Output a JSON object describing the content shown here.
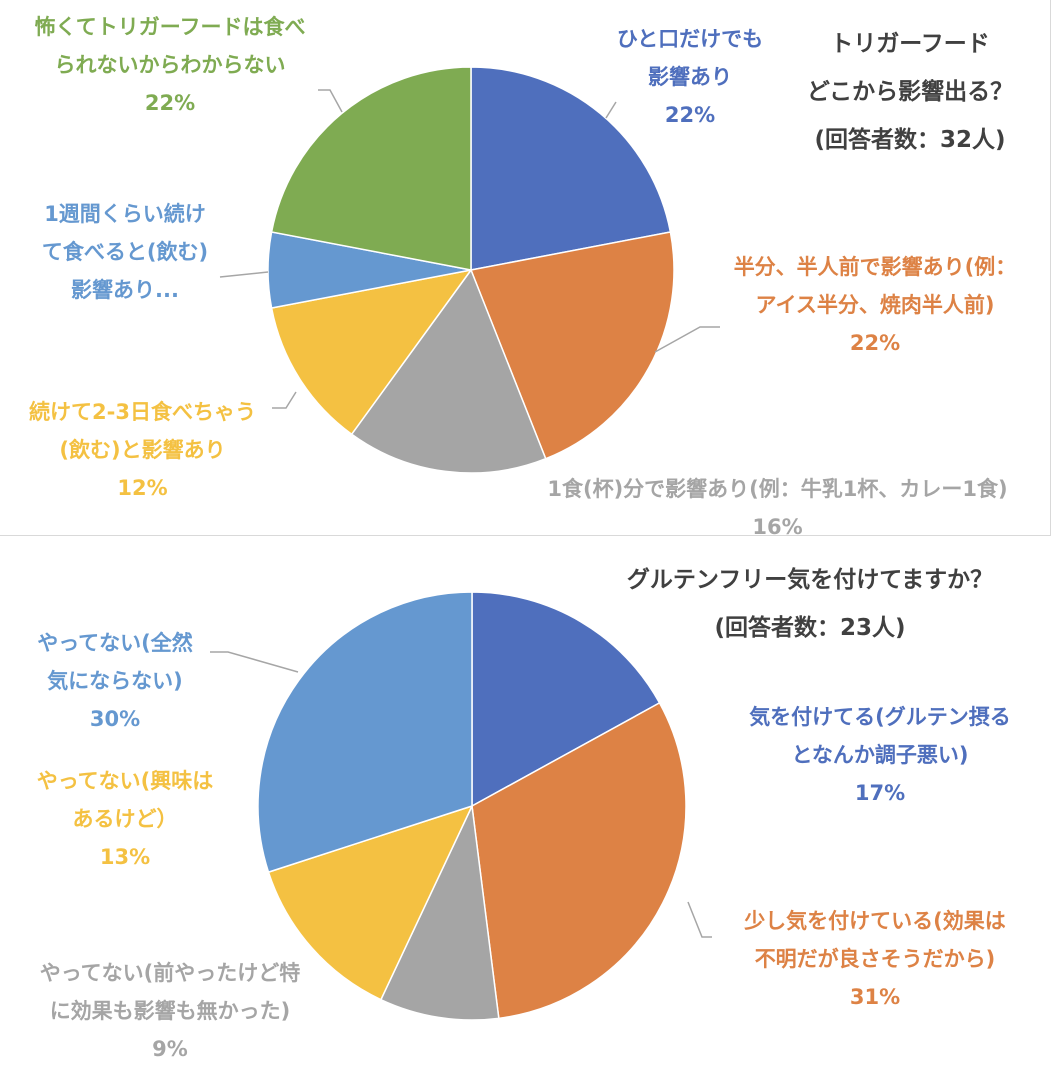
{
  "chart_data": [
    {
      "type": "pie",
      "title": [
        "トリガーフード",
        "どこから影響出る？",
        "(回答者数：32人)"
      ],
      "slices": [
        {
          "label": [
            "ひと口だけでも",
            "影響あり"
          ],
          "percent_label": "22%",
          "value": 22,
          "color": "#4f6fbd"
        },
        {
          "label": [
            "半分、半人前で影響あり(例：",
            "アイス半分、焼肉半人前)"
          ],
          "percent_label": "22%",
          "value": 22,
          "color": "#dd8245"
        },
        {
          "label": [
            "1食(杯)分で影響あり(例：牛乳1杯、カレー1食)"
          ],
          "percent_label": "16%",
          "value": 16,
          "color": "#a5a5a5"
        },
        {
          "label": [
            "続けて2-3日食べちゃう",
            "(飲む)と影響あり"
          ],
          "percent_label": "12%",
          "value": 12,
          "color": "#f4c142"
        },
        {
          "label": [
            "1週間くらい続け",
            "て食べると(飲む)",
            "影響あり..."
          ],
          "percent_label": "",
          "value": 6,
          "color": "#6598d0"
        },
        {
          "label": [
            "怖くてトリガーフードは食べ",
            "られないからわからない"
          ],
          "percent_label": "22%",
          "value": 22,
          "color": "#7fab52"
        }
      ]
    },
    {
      "type": "pie",
      "title": [
        "グルテンフリー気を付けてますか？",
        "(回答者数：23人)"
      ],
      "slices": [
        {
          "label": [
            "気を付けてる(グルテン摂る",
            "となんか調子悪い)"
          ],
          "percent_label": "17%",
          "value": 17,
          "color": "#4f6fbd"
        },
        {
          "label": [
            "少し気を付けている(効果は",
            "不明だが良さそうだから)"
          ],
          "percent_label": "31%",
          "value": 31,
          "color": "#dd8245"
        },
        {
          "label": [
            "やってない(前やったけど特",
            "に効果も影響も無かった)"
          ],
          "percent_label": "9%",
          "value": 9,
          "color": "#a5a5a5"
        },
        {
          "label": [
            "やってない(興味は",
            "あるけど）"
          ],
          "percent_label": "13%",
          "value": 13,
          "color": "#f4c142"
        },
        {
          "label": [
            "やってない(全然",
            "気にならない)"
          ],
          "percent_label": "30%",
          "value": 30,
          "color": "#6598d0"
        }
      ]
    }
  ]
}
